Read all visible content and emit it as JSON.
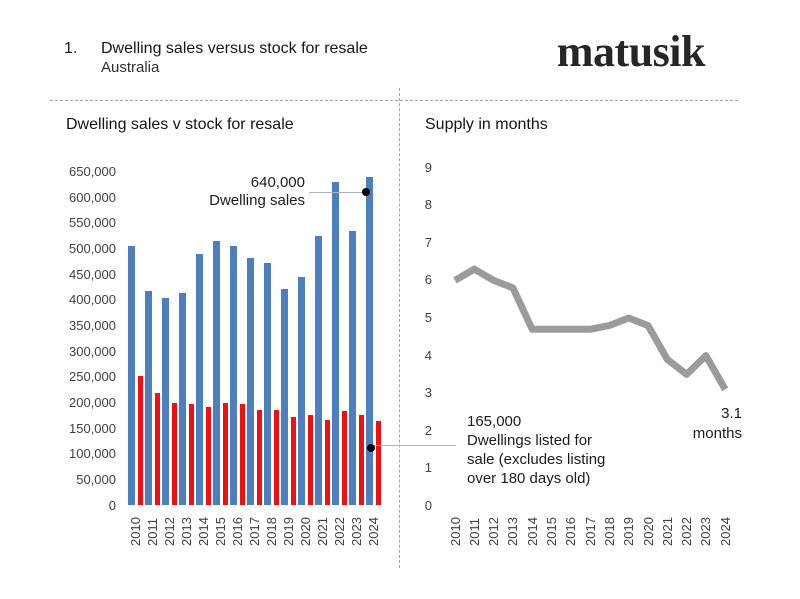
{
  "header": {
    "number": "1.",
    "title": "Dwelling sales versus stock for resale",
    "subtitle": "Australia",
    "logo": "matusik"
  },
  "colors": {
    "sales_bar": "#4d7ebd",
    "stock_bar": "#f20f0f",
    "supply_line": "#9b9b9b",
    "divider": "#a3a3a3",
    "connector": "#b3b3b3",
    "callout_dot": "#000000",
    "axis_text": "#3f3f3f",
    "title_text": "#141414"
  },
  "chart_data": [
    {
      "type": "bar",
      "title": "Dwelling sales v stock for resale",
      "categories": [
        "2010",
        "2011",
        "2012",
        "2013",
        "2014",
        "2015",
        "2016",
        "2017",
        "2018",
        "2019",
        "2020",
        "2021",
        "2022",
        "2023",
        "2024"
      ],
      "series": [
        {
          "name": "Dwelling sales",
          "color": "#4d7ebd",
          "values": [
            505000,
            418000,
            404000,
            415000,
            490000,
            515000,
            505000,
            483000,
            473000,
            422000,
            446000,
            525000,
            630000,
            535000,
            640000
          ]
        },
        {
          "name": "Dwellings listed for sale",
          "color": "#f20f0f",
          "values": [
            253000,
            219000,
            200000,
            197000,
            192000,
            200000,
            198000,
            186000,
            187000,
            172000,
            177000,
            167000,
            184000,
            176000,
            165000
          ]
        }
      ],
      "xlabel": "",
      "ylabel": "",
      "ylim": [
        0,
        650000
      ],
      "ytick_step": 50000,
      "grid": false,
      "legend": "none",
      "annotations": [
        {
          "value": "640,000",
          "label": "Dwelling sales",
          "target_year": "2024",
          "target_series": "Dwelling sales"
        },
        {
          "value": "165,000",
          "label_lines": [
            "Dwellings listed for",
            "sale (excludes listing",
            "over 180 days old)"
          ],
          "target_year": "2024",
          "target_series": "Dwellings listed for sale"
        }
      ]
    },
    {
      "type": "line",
      "title": "Supply in months",
      "categories": [
        "2010",
        "2011",
        "2012",
        "2013",
        "2014",
        "2015",
        "2016",
        "2017",
        "2018",
        "2019",
        "2020",
        "2021",
        "2022",
        "2023",
        "2024"
      ],
      "series": [
        {
          "name": "Supply in months",
          "color": "#9b9b9b",
          "values": [
            6.0,
            6.3,
            6.0,
            5.8,
            4.7,
            4.7,
            4.7,
            4.7,
            4.8,
            5.0,
            4.8,
            3.9,
            3.5,
            4.0,
            3.1
          ]
        }
      ],
      "xlabel": "",
      "ylabel": "",
      "ylim": [
        0,
        9
      ],
      "ytick_step": 1,
      "grid": false,
      "legend": "none",
      "annotations": [
        {
          "value": "3.1",
          "label": "months",
          "target_year": "2024"
        }
      ]
    }
  ]
}
